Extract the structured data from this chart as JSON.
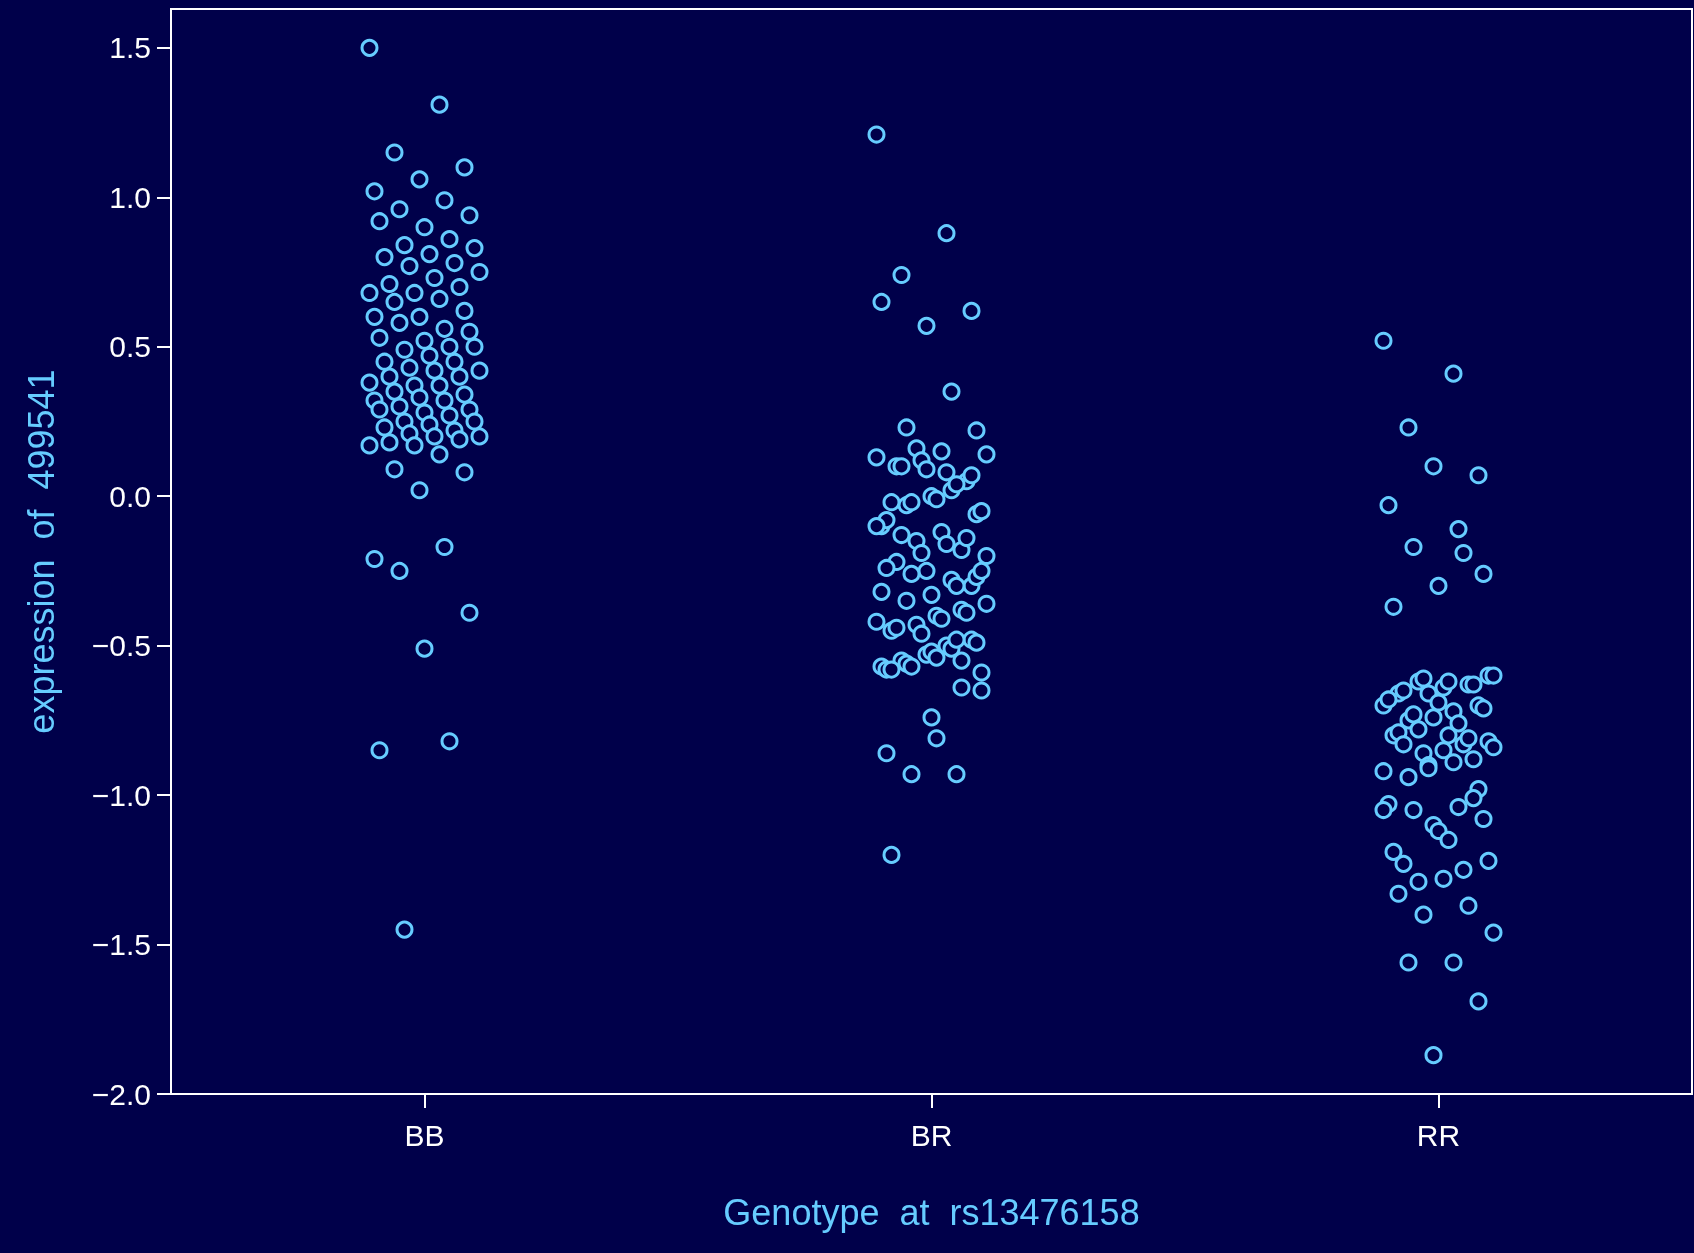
{
  "chart_data": {
    "type": "scatter",
    "xlabel": "Genotype  at  rs13476158",
    "ylabel": "expression  of  499541",
    "categories": [
      "BB",
      "BR",
      "RR"
    ],
    "ylim": [
      -2.0,
      1.63
    ],
    "yticks": [
      {
        "value": -2,
        "label": "−2.0"
      },
      {
        "value": -1.5,
        "label": "−1.5"
      },
      {
        "value": -1,
        "label": "−1.0"
      },
      {
        "value": -0.5,
        "label": "−0.5"
      },
      {
        "value": 0,
        "label": "0.0"
      },
      {
        "value": 0.5,
        "label": "0.5"
      },
      {
        "value": 1,
        "label": "1.0"
      },
      {
        "value": 1.5,
        "label": "1.5"
      }
    ],
    "grid": false,
    "marker": "circle",
    "series": [
      {
        "color": "#66ccff",
        "x": [
          "BB",
          "BB",
          "BB",
          "BB",
          "BB",
          "BB",
          "BB",
          "BB",
          "BB",
          "BB",
          "BB",
          "BB",
          "BB",
          "BB",
          "BB",
          "BB",
          "BB",
          "BB",
          "BB",
          "BB",
          "BB",
          "BB",
          "BB",
          "BB",
          "BB",
          "BB",
          "BB",
          "BB",
          "BB",
          "BB",
          "BB",
          "BB",
          "BB",
          "BB",
          "BB",
          "BB",
          "BB",
          "BB",
          "BB",
          "BB",
          "BB",
          "BB",
          "BB",
          "BB",
          "BB",
          "BB",
          "BB",
          "BB",
          "BB",
          "BB",
          "BB",
          "BB",
          "BB",
          "BB",
          "BB",
          "BB",
          "BB",
          "BB",
          "BB",
          "BB",
          "BB",
          "BB",
          "BB",
          "BB",
          "BB",
          "BB",
          "BB",
          "BB",
          "BB",
          "BB",
          "BB",
          "BB",
          "BB",
          "BB",
          "BB",
          "BB",
          "BB",
          "BB",
          "BB",
          "BB",
          "BB",
          "BB"
        ],
        "values": [
          1.5,
          1.31,
          1.15,
          1.1,
          1.06,
          1.02,
          0.99,
          0.96,
          0.94,
          0.9,
          0.92,
          0.86,
          0.84,
          0.83,
          0.81,
          0.8,
          0.78,
          0.77,
          0.75,
          0.73,
          0.71,
          0.7,
          0.68,
          0.68,
          0.66,
          0.65,
          0.62,
          0.6,
          0.6,
          0.56,
          0.58,
          0.55,
          0.52,
          0.53,
          0.5,
          0.49,
          0.5,
          0.47,
          0.45,
          0.45,
          0.43,
          0.42,
          0.42,
          0.4,
          0.4,
          0.37,
          0.38,
          0.37,
          0.35,
          0.34,
          0.33,
          0.32,
          0.32,
          0.3,
          0.29,
          0.28,
          0.29,
          0.27,
          0.25,
          0.25,
          0.24,
          0.23,
          0.22,
          0.21,
          0.2,
          0.2,
          0.18,
          0.19,
          0.17,
          0.17,
          0.14,
          0.09,
          0.08,
          0.02,
          -0.21,
          -0.17,
          -0.25,
          -0.39,
          -0.51,
          -0.85,
          -0.82,
          -1.45
        ]
      },
      {
        "color": "#66ccff",
        "x": [
          "BR",
          "BR",
          "BR",
          "BR",
          "BR",
          "BR",
          "BR",
          "BR",
          "BR",
          "BR",
          "BR",
          "BR",
          "BR",
          "BR",
          "BR",
          "BR",
          "BR",
          "BR",
          "BR",
          "BR",
          "BR",
          "BR",
          "BR",
          "BR",
          "BR",
          "BR",
          "BR",
          "BR",
          "BR",
          "BR",
          "BR",
          "BR",
          "BR",
          "BR",
          "BR",
          "BR",
          "BR",
          "BR",
          "BR",
          "BR",
          "BR",
          "BR",
          "BR",
          "BR",
          "BR",
          "BR",
          "BR",
          "BR",
          "BR",
          "BR",
          "BR",
          "BR",
          "BR",
          "BR",
          "BR",
          "BR",
          "BR",
          "BR",
          "BR",
          "BR",
          "BR",
          "BR",
          "BR",
          "BR",
          "BR",
          "BR",
          "BR",
          "BR",
          "BR",
          "BR",
          "BR",
          "BR",
          "BR",
          "BR",
          "BR",
          "BR",
          "BR",
          "BR",
          "BR",
          "BR",
          "BR",
          "BR",
          "BR",
          "BR",
          "BR",
          "BR"
        ],
        "values": [
          1.21,
          0.88,
          0.74,
          0.62,
          0.57,
          0.65,
          0.35,
          0.23,
          0.22,
          -0.74,
          -0.86,
          -0.93,
          -0.93,
          -0.65,
          -0.81,
          -1.2,
          -0.64,
          0.16,
          0.14,
          0.15,
          0.1,
          0.05,
          0.12,
          0.13,
          0.08,
          0.1,
          0.07,
          0.09,
          -0.1,
          0.02,
          -0.03,
          -0.06,
          0.0,
          -0.08,
          0.04,
          -0.02,
          -0.05,
          -0.01,
          -0.02,
          -0.18,
          -0.15,
          -0.2,
          -0.12,
          -0.22,
          -0.14,
          -0.19,
          -0.1,
          -0.16,
          -0.13,
          -0.3,
          -0.25,
          -0.32,
          -0.28,
          -0.35,
          -0.27,
          -0.33,
          -0.24,
          -0.3,
          -0.26,
          -0.25,
          -0.4,
          -0.45,
          -0.38,
          -0.43,
          -0.36,
          -0.41,
          -0.44,
          -0.39,
          -0.46,
          -0.42,
          -0.5,
          -0.55,
          -0.48,
          -0.53,
          -0.57,
          -0.51,
          -0.56,
          -0.49,
          -0.52,
          -0.58,
          -0.48,
          -0.57,
          -0.59,
          -0.54,
          -0.58,
          -0.55
        ]
      },
      {
        "color": "#66ccff",
        "x": [
          "RR",
          "RR",
          "RR",
          "RR",
          "RR",
          "RR",
          "RR",
          "RR",
          "RR",
          "RR",
          "RR",
          "RR",
          "RR",
          "RR",
          "RR",
          "RR",
          "RR",
          "RR",
          "RR",
          "RR",
          "RR",
          "RR",
          "RR",
          "RR",
          "RR",
          "RR",
          "RR",
          "RR",
          "RR",
          "RR",
          "RR",
          "RR",
          "RR",
          "RR",
          "RR",
          "RR",
          "RR",
          "RR",
          "RR",
          "RR",
          "RR",
          "RR",
          "RR",
          "RR",
          "RR",
          "RR",
          "RR",
          "RR",
          "RR",
          "RR",
          "RR",
          "RR",
          "RR",
          "RR",
          "RR",
          "RR",
          "RR",
          "RR",
          "RR",
          "RR",
          "RR",
          "RR",
          "RR",
          "RR",
          "RR",
          "RR",
          "RR",
          "RR",
          "RR",
          "RR",
          "RR",
          "RR",
          "RR",
          "RR"
        ],
        "values": [
          0.52,
          0.41,
          0.23,
          0.07,
          0.1,
          -0.03,
          -0.11,
          -0.17,
          -0.26,
          -0.3,
          -0.37,
          -0.19,
          -0.62,
          -0.6,
          -0.64,
          -0.66,
          -0.63,
          -0.61,
          -0.6,
          -0.62,
          -0.65,
          -0.63,
          -0.66,
          -0.7,
          -0.72,
          -0.75,
          -0.7,
          -0.74,
          -0.68,
          -0.76,
          -0.73,
          -0.71,
          -0.69,
          -0.8,
          -0.83,
          -0.78,
          -0.82,
          -0.85,
          -0.79,
          -0.81,
          -0.86,
          -0.84,
          -0.8,
          -0.83,
          -0.88,
          -0.9,
          -0.92,
          -0.89,
          -0.94,
          -0.98,
          -1.1,
          -1.03,
          -1.04,
          -1.05,
          -1.08,
          -1.12,
          -1.19,
          -1.25,
          -1.29,
          -1.22,
          -1.28,
          -1.33,
          -1.37,
          -1.4,
          -1.46,
          -1.15,
          -1.23,
          -1.01,
          -0.91,
          -1.05,
          -1.56,
          -1.56,
          -1.69,
          -1.87
        ]
      }
    ]
  }
}
